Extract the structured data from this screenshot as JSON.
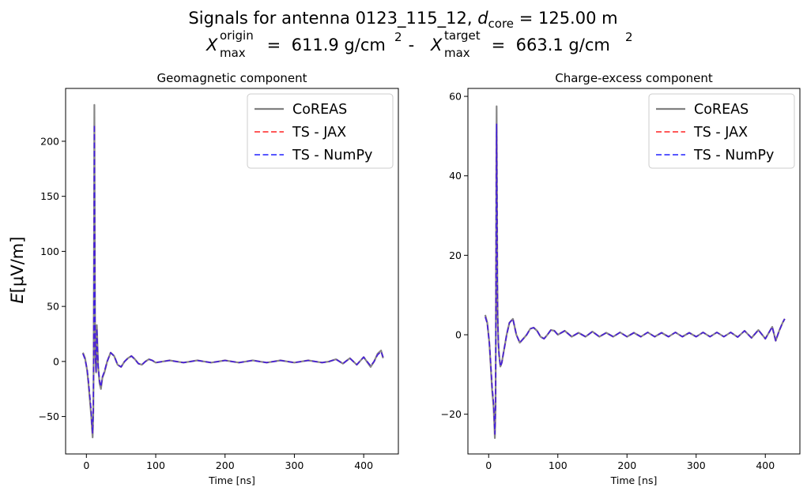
{
  "figure": {
    "title_line1": {
      "prefix": "Signals for antenna 0123_115_12, ",
      "dcore_symbol": "d",
      "dcore_sub": "core",
      "suffix": " = 125.00 m"
    },
    "title_line2": {
      "x_symbol": "X",
      "max_sub": "max",
      "origin_sup": "origin",
      "target_sup": "target",
      "origin_value": " =  611.9 g/cm",
      "separator": " -  ",
      "target_value": " =  663.1 g/cm",
      "power": "2"
    },
    "shared_ylabel": {
      "symbol": "E",
      "unit": "[μV/m]"
    }
  },
  "colors": {
    "coreas": "#808080",
    "jax": "#ff2020",
    "numpy": "#2020ff",
    "axes": "#000000"
  },
  "chart_data": [
    {
      "type": "line",
      "title": "Geomagnetic component",
      "xlabel": "Time [ns]",
      "ylabel": "E[μV/m]",
      "xlim": [
        -30,
        450
      ],
      "ylim": [
        -84,
        248
      ],
      "xticks": [
        0,
        100,
        200,
        300,
        400
      ],
      "yticks": [
        -50,
        0,
        50,
        100,
        150,
        200
      ],
      "legend": "top-right",
      "legend_entries": [
        "CoREAS",
        "TS - JAX",
        "TS - NumPy"
      ],
      "series": [
        {
          "name": "CoREAS",
          "style": "solid",
          "x": [
            -5,
            -2,
            1,
            3,
            5,
            7,
            8,
            9,
            10,
            10.5,
            11,
            11.5,
            12,
            12.5,
            13,
            14,
            15,
            17,
            19,
            21,
            23,
            26,
            30,
            35,
            40,
            45,
            50,
            55,
            60,
            65,
            70,
            75,
            80,
            85,
            90,
            95,
            100,
            110,
            120,
            130,
            140,
            150,
            160,
            170,
            180,
            190,
            200,
            210,
            220,
            230,
            240,
            250,
            260,
            270,
            280,
            290,
            300,
            310,
            320,
            330,
            340,
            350,
            360,
            370,
            380,
            390,
            400,
            410,
            415,
            420,
            425,
            428
          ],
          "y": [
            8,
            3,
            -8,
            -20,
            -35,
            -50,
            -60,
            -69,
            -45,
            5,
            120,
            233,
            140,
            30,
            5,
            -10,
            33,
            -5,
            -20,
            -25,
            -15,
            -10,
            0,
            8,
            5,
            -3,
            -5,
            0,
            3,
            5,
            2,
            -2,
            -3,
            0,
            2,
            1,
            -1,
            0,
            1,
            0,
            -1,
            0,
            1,
            0,
            -1,
            0,
            1,
            0,
            -1,
            0,
            1,
            0,
            -1,
            0,
            1,
            0,
            -1,
            0,
            1,
            0,
            -1,
            0,
            2,
            -2,
            3,
            -3,
            4,
            -5,
            0,
            7,
            10,
            3
          ]
        },
        {
          "name": "TS - JAX",
          "style": "dashed",
          "x": [
            -5,
            -2,
            1,
            3,
            5,
            7,
            8,
            9,
            10,
            10.5,
            11,
            11.5,
            12,
            12.5,
            13,
            14,
            15,
            17,
            19,
            21,
            23,
            26,
            30,
            35,
            40,
            45,
            50,
            55,
            60,
            65,
            70,
            75,
            80,
            85,
            90,
            95,
            100,
            110,
            120,
            130,
            140,
            150,
            160,
            170,
            180,
            190,
            200,
            210,
            220,
            230,
            240,
            250,
            260,
            270,
            280,
            290,
            300,
            310,
            320,
            330,
            340,
            350,
            360,
            370,
            380,
            390,
            400,
            410,
            415,
            420,
            425,
            428
          ],
          "y": [
            7,
            2,
            -7,
            -18,
            -32,
            -46,
            -57,
            -65,
            -42,
            3,
            110,
            215,
            130,
            25,
            4,
            -9,
            30,
            -4,
            -18,
            -23,
            -14,
            -9,
            0,
            8,
            5,
            -3,
            -5,
            0,
            3,
            5,
            2,
            -2,
            -3,
            0,
            2,
            1,
            -1,
            0,
            1,
            0,
            -1,
            0,
            1,
            0,
            -1,
            0,
            1,
            0,
            -1,
            0,
            1,
            0,
            -1,
            0,
            1,
            0,
            -1,
            0,
            1,
            0,
            -1,
            0,
            2,
            -2,
            3,
            -3,
            4,
            -4,
            0,
            6,
            9,
            4
          ]
        },
        {
          "name": "TS - NumPy",
          "style": "dashed",
          "x": [
            -5,
            -2,
            1,
            3,
            5,
            7,
            8,
            9,
            10,
            10.5,
            11,
            11.5,
            12,
            12.5,
            13,
            14,
            15,
            17,
            19,
            21,
            23,
            26,
            30,
            35,
            40,
            45,
            50,
            55,
            60,
            65,
            70,
            75,
            80,
            85,
            90,
            95,
            100,
            110,
            120,
            130,
            140,
            150,
            160,
            170,
            180,
            190,
            200,
            210,
            220,
            230,
            240,
            250,
            260,
            270,
            280,
            290,
            300,
            310,
            320,
            330,
            340,
            350,
            360,
            370,
            380,
            390,
            400,
            410,
            415,
            420,
            425,
            428
          ],
          "y": [
            7,
            2,
            -7,
            -18,
            -32,
            -46,
            -57,
            -65,
            -42,
            3,
            110,
            215,
            130,
            25,
            4,
            -9,
            30,
            -4,
            -18,
            -23,
            -14,
            -9,
            0,
            8,
            5,
            -3,
            -5,
            0,
            3,
            5,
            2,
            -2,
            -3,
            0,
            2,
            1,
            -1,
            0,
            1,
            0,
            -1,
            0,
            1,
            0,
            -1,
            0,
            1,
            0,
            -1,
            0,
            1,
            0,
            -1,
            0,
            1,
            0,
            -1,
            0,
            1,
            0,
            -1,
            0,
            2,
            -2,
            3,
            -3,
            4,
            -4,
            0,
            6,
            9,
            4
          ]
        }
      ]
    },
    {
      "type": "line",
      "title": "Charge-excess component",
      "xlabel": "Time [ns]",
      "ylabel": "",
      "xlim": [
        -30,
        450
      ],
      "ylim": [
        -30,
        62
      ],
      "xticks": [
        0,
        100,
        200,
        300,
        400
      ],
      "yticks": [
        -20,
        0,
        20,
        40,
        60
      ],
      "legend": "top-right",
      "legend_entries": [
        "CoREAS",
        "TS - JAX",
        "TS - NumPy"
      ],
      "series": [
        {
          "name": "CoREAS",
          "style": "solid",
          "x": [
            -5,
            -2,
            1,
            3,
            5,
            7,
            8,
            9,
            10,
            10.5,
            11,
            11.5,
            12,
            12.5,
            13,
            14,
            15,
            17,
            19,
            21,
            23,
            26,
            30,
            35,
            40,
            45,
            50,
            55,
            60,
            65,
            70,
            75,
            80,
            85,
            90,
            95,
            100,
            110,
            120,
            130,
            140,
            150,
            160,
            170,
            180,
            190,
            200,
            210,
            220,
            230,
            240,
            250,
            260,
            270,
            280,
            290,
            300,
            310,
            320,
            330,
            340,
            350,
            360,
            370,
            380,
            390,
            400,
            410,
            415,
            420,
            425,
            428
          ],
          "y": [
            5,
            3,
            -2,
            -8,
            -14,
            -18,
            -22,
            -26,
            -18,
            5,
            40,
            57.5,
            35,
            15,
            5,
            -2,
            -5,
            -8,
            -7,
            -5,
            -3,
            0,
            3,
            4,
            0,
            -2,
            -1,
            0,
            1.5,
            1.8,
            1,
            -0.5,
            -1,
            0,
            1.2,
            1,
            0,
            1,
            -0.5,
            0.5,
            -0.5,
            0.8,
            -0.5,
            0.5,
            -0.5,
            0.6,
            -0.5,
            0.5,
            -0.5,
            0.6,
            -0.5,
            0.5,
            -0.5,
            0.6,
            -0.5,
            0.5,
            -0.5,
            0.6,
            -0.5,
            0.6,
            -0.5,
            0.6,
            -0.6,
            1,
            -0.8,
            1.2,
            -1,
            2,
            -1.5,
            1,
            3,
            4
          ]
        },
        {
          "name": "TS - JAX",
          "style": "dashed",
          "x": [
            -5,
            -2,
            1,
            3,
            5,
            7,
            8,
            9,
            10,
            10.5,
            11,
            11.5,
            12,
            12.5,
            13,
            14,
            15,
            17,
            19,
            21,
            23,
            26,
            30,
            35,
            40,
            45,
            50,
            55,
            60,
            65,
            70,
            75,
            80,
            85,
            90,
            95,
            100,
            110,
            120,
            130,
            140,
            150,
            160,
            170,
            180,
            190,
            200,
            210,
            220,
            230,
            240,
            250,
            260,
            270,
            280,
            290,
            300,
            310,
            320,
            330,
            340,
            350,
            360,
            370,
            380,
            390,
            400,
            410,
            415,
            420,
            425,
            428
          ],
          "y": [
            4.5,
            2.8,
            -2,
            -7.5,
            -13,
            -17,
            -21,
            -25,
            -17,
            4,
            37,
            53,
            32,
            14,
            5,
            -2,
            -5,
            -8,
            -7,
            -5,
            -3,
            0,
            3,
            4,
            0,
            -2,
            -1,
            0,
            1.5,
            1.8,
            1,
            -0.5,
            -1,
            0,
            1.2,
            1,
            0,
            1,
            -0.5,
            0.5,
            -0.5,
            0.8,
            -0.5,
            0.5,
            -0.5,
            0.6,
            -0.5,
            0.5,
            -0.5,
            0.6,
            -0.5,
            0.5,
            -0.5,
            0.6,
            -0.5,
            0.5,
            -0.5,
            0.6,
            -0.5,
            0.6,
            -0.5,
            0.6,
            -0.6,
            1,
            -0.8,
            1.2,
            -1,
            2,
            -1.5,
            1,
            3,
            4
          ]
        },
        {
          "name": "TS - NumPy",
          "style": "dashed",
          "x": [
            -5,
            -2,
            1,
            3,
            5,
            7,
            8,
            9,
            10,
            10.5,
            11,
            11.5,
            12,
            12.5,
            13,
            14,
            15,
            17,
            19,
            21,
            23,
            26,
            30,
            35,
            40,
            45,
            50,
            55,
            60,
            65,
            70,
            75,
            80,
            85,
            90,
            95,
            100,
            110,
            120,
            130,
            140,
            150,
            160,
            170,
            180,
            190,
            200,
            210,
            220,
            230,
            240,
            250,
            260,
            270,
            280,
            290,
            300,
            310,
            320,
            330,
            340,
            350,
            360,
            370,
            380,
            390,
            400,
            410,
            415,
            420,
            425,
            428
          ],
          "y": [
            4.5,
            2.8,
            -2,
            -7.5,
            -13,
            -17,
            -21,
            -25,
            -17,
            4,
            37,
            53,
            32,
            14,
            5,
            -2,
            -5,
            -8,
            -7,
            -5,
            -3,
            0,
            3,
            4,
            0,
            -2,
            -1,
            0,
            1.5,
            1.8,
            1,
            -0.5,
            -1,
            0,
            1.2,
            1,
            0,
            1,
            -0.5,
            0.5,
            -0.5,
            0.8,
            -0.5,
            0.5,
            -0.5,
            0.6,
            -0.5,
            0.5,
            -0.5,
            0.6,
            -0.5,
            0.5,
            -0.5,
            0.6,
            -0.5,
            0.5,
            -0.5,
            0.6,
            -0.5,
            0.6,
            -0.5,
            0.6,
            -0.6,
            1,
            -0.8,
            1.2,
            -1,
            2,
            -1.5,
            1,
            3,
            4
          ]
        }
      ]
    }
  ]
}
